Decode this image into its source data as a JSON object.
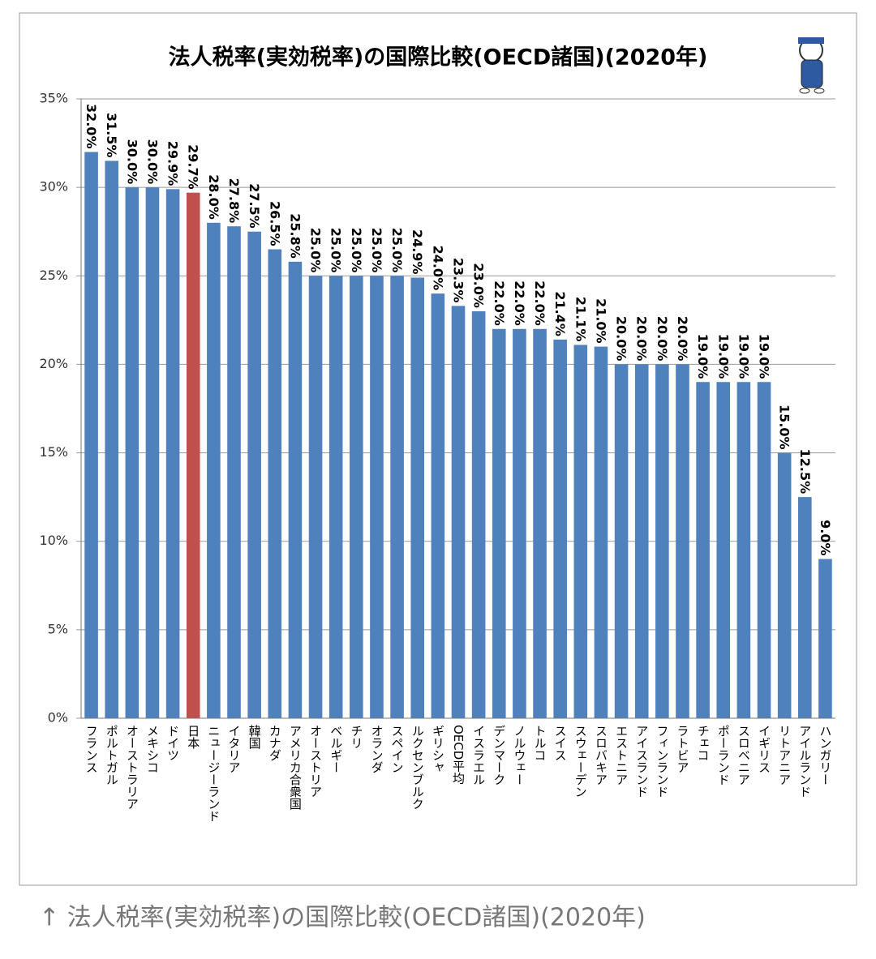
{
  "chart_data": {
    "type": "bar",
    "title": "法人税率(実効税率)の国際比較(OECD諸国)(2020年)",
    "categories": [
      "フランス",
      "ポルトガル",
      "オーストラリア",
      "メキシコ",
      "ドイツ",
      "日本",
      "ニュージーランド",
      "イタリア",
      "韓国",
      "カナダ",
      "アメリカ合衆国",
      "オーストリア",
      "ベルギー",
      "チリ",
      "オランダ",
      "スペイン",
      "ルクセンブルク",
      "ギリシャ",
      "OECD平均",
      "イスラエル",
      "デンマーク",
      "ノルウェー",
      "トルコ",
      "スイス",
      "スウェーデン",
      "スロバキア",
      "エストニア",
      "アイスランド",
      "フィンランド",
      "ラトビア",
      "チェコ",
      "ポーランド",
      "スロベニア",
      "イギリス",
      "リトアニア",
      "アイルランド",
      "ハンガリー"
    ],
    "values": [
      32.0,
      31.5,
      30.0,
      30.0,
      29.9,
      29.7,
      28.0,
      27.8,
      27.5,
      26.5,
      25.8,
      25.0,
      25.0,
      25.0,
      25.0,
      25.0,
      24.9,
      24.0,
      23.3,
      23.0,
      22.0,
      22.0,
      22.0,
      21.4,
      21.1,
      21.0,
      20.0,
      20.0,
      20.0,
      20.0,
      19.0,
      19.0,
      19.0,
      19.0,
      15.0,
      12.5,
      9.0
    ],
    "value_labels": [
      "32.0%",
      "31.5%",
      "30.0%",
      "30.0%",
      "29.9%",
      "29.7%",
      "28.0%",
      "27.8%",
      "27.5%",
      "26.5%",
      "25.8%",
      "25.0%",
      "25.0%",
      "25.0%",
      "25.0%",
      "25.0%",
      "24.9%",
      "24.0%",
      "23.3%",
      "23.0%",
      "22.0%",
      "22.0%",
      "22.0%",
      "21.4%",
      "21.1%",
      "21.0%",
      "20.0%",
      "20.0%",
      "20.0%",
      "20.0%",
      "19.0%",
      "19.0%",
      "19.0%",
      "19.0%",
      "15.0%",
      "12.5%",
      "9.0%"
    ],
    "colors": [
      "#4f81bd",
      "#4f81bd",
      "#4f81bd",
      "#4f81bd",
      "#4f81bd",
      "#c0504d",
      "#4f81bd",
      "#4f81bd",
      "#4f81bd",
      "#4f81bd",
      "#4f81bd",
      "#4f81bd",
      "#4f81bd",
      "#4f81bd",
      "#4f81bd",
      "#4f81bd",
      "#4f81bd",
      "#4f81bd",
      "#4f81bd",
      "#4f81bd",
      "#4f81bd",
      "#4f81bd",
      "#4f81bd",
      "#4f81bd",
      "#4f81bd",
      "#4f81bd",
      "#4f81bd",
      "#4f81bd",
      "#4f81bd",
      "#4f81bd",
      "#4f81bd",
      "#4f81bd",
      "#4f81bd",
      "#4f81bd",
      "#4f81bd",
      "#4f81bd",
      "#4f81bd"
    ],
    "ylim": [
      0,
      35
    ],
    "yticks": [
      {
        "value": 0,
        "label": "0%"
      },
      {
        "value": 5,
        "label": "5%"
      },
      {
        "value": 10,
        "label": "10%"
      },
      {
        "value": 15,
        "label": "15%"
      },
      {
        "value": 20,
        "label": "20%"
      },
      {
        "value": 25,
        "label": "25%"
      },
      {
        "value": 30,
        "label": "30%"
      },
      {
        "value": 35,
        "label": "35%"
      }
    ],
    "grid": true
  },
  "caption": "↑ 法人税率(実効税率)の国際比較(OECD諸国)(2020年)"
}
